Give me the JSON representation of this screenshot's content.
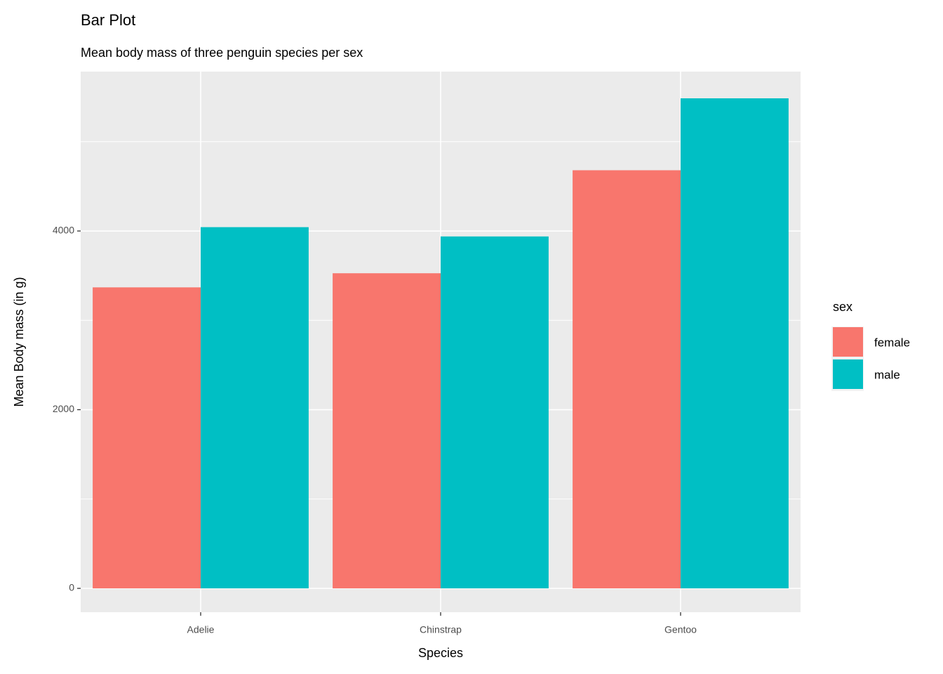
{
  "chart_data": {
    "type": "grouped-bar",
    "title": "Bar Plot",
    "subtitle": "Mean body mass of three penguin species per sex",
    "x_label": "Species",
    "y_label": "Mean Body mass (in g)",
    "categories": [
      "Adelie",
      "Chinstrap",
      "Gentoo"
    ],
    "series": [
      {
        "name": "female",
        "color": "#f8766d",
        "values": [
          3369,
          3527,
          4680
        ]
      },
      {
        "name": "male",
        "color": "#00bfc4",
        "values": [
          4043,
          3939,
          5485
        ]
      }
    ],
    "legend_title": "sex",
    "legend_position": "right",
    "ylim": [
      -267,
      5784
    ],
    "yticks": [
      0,
      2000,
      4000
    ],
    "y_minor_gridlines": [
      1000,
      3000,
      5000
    ],
    "grid": true
  }
}
